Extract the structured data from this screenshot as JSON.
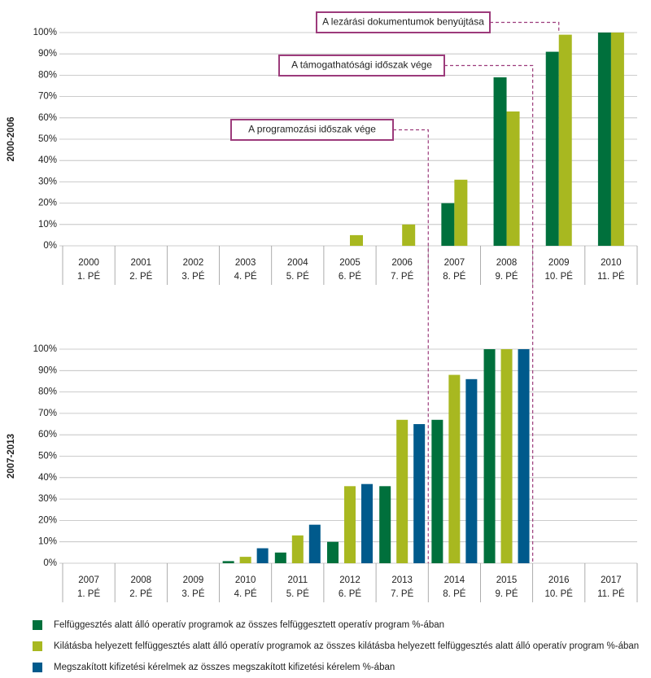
{
  "chart_data": [
    {
      "type": "bar",
      "y_label": "2000-2006",
      "categories": [
        "2000",
        "2001",
        "2002",
        "2003",
        "2004",
        "2005",
        "2006",
        "2007",
        "2008",
        "2009",
        "2010"
      ],
      "periods": [
        "1. PÉ",
        "2. PÉ",
        "3. PÉ",
        "4. PÉ",
        "5. PÉ",
        "6. PÉ",
        "7. PÉ",
        "8. PÉ",
        "9. PÉ",
        "10. PÉ",
        "11. PÉ"
      ],
      "series": [
        {
          "color": "#00703c",
          "values": [
            0,
            0,
            0,
            0,
            0,
            0,
            0,
            20,
            79,
            91,
            100
          ]
        },
        {
          "color": "#a8b820",
          "values": [
            0,
            0,
            0,
            0,
            0,
            5,
            10,
            31,
            63,
            99,
            100
          ]
        }
      ],
      "ylim": [
        0,
        100
      ],
      "yticks": [
        {
          "value": 0,
          "label": "0%"
        },
        {
          "value": 10,
          "label": "10%"
        },
        {
          "value": 20,
          "label": "20%"
        },
        {
          "value": 30,
          "label": "30%"
        },
        {
          "value": 40,
          "label": "40%"
        },
        {
          "value": 50,
          "label": "50%"
        },
        {
          "value": 60,
          "label": "60%"
        },
        {
          "value": 70,
          "label": "70%"
        },
        {
          "value": 80,
          "label": "80%"
        },
        {
          "value": 90,
          "label": "90%"
        },
        {
          "value": 100,
          "label": "100%"
        }
      ],
      "grid": true,
      "annotations": [
        "A lezárási dokumentumok benyújtása",
        "A támogathatósági időszak vége",
        "A programozási időszak vége"
      ]
    },
    {
      "type": "bar",
      "y_label": "2007-2013",
      "categories": [
        "2007",
        "2008",
        "2009",
        "2010",
        "2011",
        "2012",
        "2013",
        "2014",
        "2015",
        "2016",
        "2017"
      ],
      "periods": [
        "1. PÉ",
        "2. PÉ",
        "3. PÉ",
        "4. PÉ",
        "5. PÉ",
        "6. PÉ",
        "7. PÉ",
        "8. PÉ",
        "9. PÉ",
        "10. PÉ",
        "11. PÉ"
      ],
      "series": [
        {
          "name": "Felfüggesztés alatt álló operatív programok az összes felfüggesztett operatív program %-ában",
          "color": "#00703c",
          "values": [
            0,
            0,
            0,
            1,
            5,
            10,
            36,
            67,
            100,
            0,
            0
          ]
        },
        {
          "name": "Kilátásba helyezett felfüggesztés alatt álló operatív programok az összes kilátásba helyezett felfüggesztés alatt álló operatív program %-ában",
          "color": "#a8b820",
          "values": [
            0,
            0,
            0,
            3,
            13,
            36,
            67,
            88,
            100,
            0,
            0
          ]
        },
        {
          "name": "Megszakított kifizetési kérelmek az összes megszakított kifizetési kérelem %-ában",
          "color": "#005a8c",
          "values": [
            0,
            0,
            0,
            7,
            18,
            37,
            65,
            86,
            100,
            0,
            0
          ]
        }
      ],
      "ylim": [
        0,
        100
      ],
      "yticks": [
        {
          "value": 0,
          "label": "0%"
        },
        {
          "value": 10,
          "label": "10%"
        },
        {
          "value": 20,
          "label": "20%"
        },
        {
          "value": 30,
          "label": "30%"
        },
        {
          "value": 40,
          "label": "40%"
        },
        {
          "value": 50,
          "label": "50%"
        },
        {
          "value": 60,
          "label": "60%"
        },
        {
          "value": 70,
          "label": "70%"
        },
        {
          "value": 80,
          "label": "80%"
        },
        {
          "value": 90,
          "label": "90%"
        },
        {
          "value": 100,
          "label": "100%"
        }
      ],
      "grid": true
    }
  ]
}
